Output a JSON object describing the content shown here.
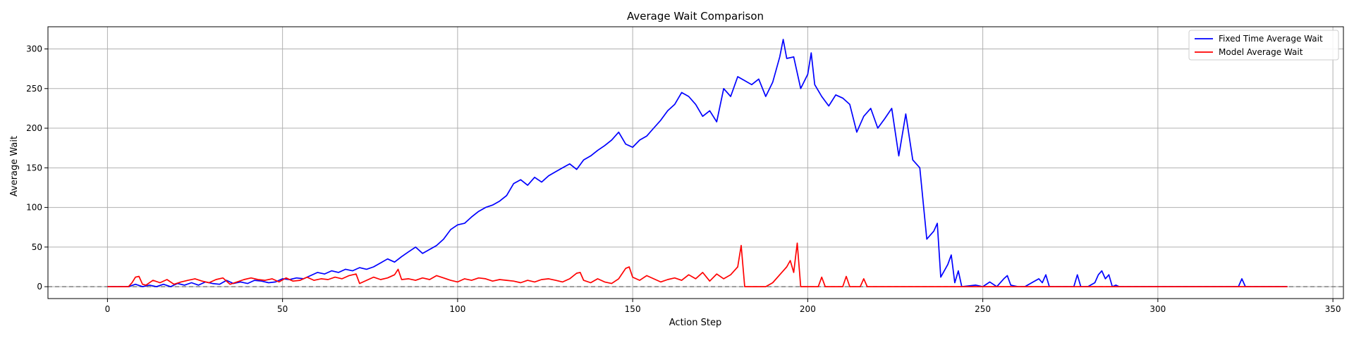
{
  "chart_data": {
    "type": "line",
    "title": "Average Wait Comparison",
    "xlabel": "Action Step",
    "ylabel": "Average Wait",
    "xlim": [
      -17,
      353
    ],
    "ylim": [
      -15,
      328
    ],
    "xticks": [
      0,
      50,
      100,
      150,
      200,
      250,
      300,
      350
    ],
    "yticks": [
      0,
      50,
      100,
      150,
      200,
      250,
      300
    ],
    "grid": true,
    "legend_position": "top-right",
    "reference_line": {
      "y": 0,
      "style": "dashed",
      "color": "#808080"
    },
    "series": [
      {
        "name": "Fixed Time Average Wait",
        "color": "#0000ff",
        "points": [
          [
            0,
            0
          ],
          [
            6,
            0
          ],
          [
            8,
            3
          ],
          [
            10,
            0
          ],
          [
            12,
            2
          ],
          [
            14,
            0
          ],
          [
            16,
            3
          ],
          [
            18,
            0
          ],
          [
            20,
            4
          ],
          [
            22,
            2
          ],
          [
            24,
            5
          ],
          [
            26,
            2
          ],
          [
            28,
            6
          ],
          [
            30,
            4
          ],
          [
            32,
            3
          ],
          [
            34,
            8
          ],
          [
            36,
            4
          ],
          [
            38,
            6
          ],
          [
            40,
            4
          ],
          [
            42,
            8
          ],
          [
            44,
            7
          ],
          [
            46,
            5
          ],
          [
            48,
            6
          ],
          [
            50,
            10
          ],
          [
            52,
            9
          ],
          [
            54,
            11
          ],
          [
            56,
            10
          ],
          [
            58,
            14
          ],
          [
            60,
            18
          ],
          [
            62,
            16
          ],
          [
            64,
            20
          ],
          [
            66,
            18
          ],
          [
            68,
            22
          ],
          [
            70,
            20
          ],
          [
            72,
            24
          ],
          [
            74,
            22
          ],
          [
            76,
            25
          ],
          [
            78,
            30
          ],
          [
            80,
            35
          ],
          [
            82,
            31
          ],
          [
            84,
            38
          ],
          [
            86,
            44
          ],
          [
            88,
            50
          ],
          [
            90,
            42
          ],
          [
            92,
            47
          ],
          [
            94,
            52
          ],
          [
            96,
            60
          ],
          [
            98,
            72
          ],
          [
            100,
            78
          ],
          [
            102,
            80
          ],
          [
            104,
            88
          ],
          [
            106,
            95
          ],
          [
            108,
            100
          ],
          [
            110,
            103
          ],
          [
            112,
            108
          ],
          [
            114,
            115
          ],
          [
            116,
            130
          ],
          [
            118,
            135
          ],
          [
            120,
            128
          ],
          [
            122,
            138
          ],
          [
            124,
            132
          ],
          [
            126,
            140
          ],
          [
            128,
            145
          ],
          [
            130,
            150
          ],
          [
            132,
            155
          ],
          [
            134,
            148
          ],
          [
            136,
            160
          ],
          [
            138,
            165
          ],
          [
            140,
            172
          ],
          [
            142,
            178
          ],
          [
            144,
            185
          ],
          [
            146,
            195
          ],
          [
            148,
            180
          ],
          [
            150,
            176
          ],
          [
            152,
            185
          ],
          [
            154,
            190
          ],
          [
            156,
            200
          ],
          [
            158,
            210
          ],
          [
            160,
            222
          ],
          [
            162,
            230
          ],
          [
            164,
            245
          ],
          [
            166,
            240
          ],
          [
            168,
            230
          ],
          [
            170,
            215
          ],
          [
            172,
            222
          ],
          [
            174,
            208
          ],
          [
            176,
            250
          ],
          [
            178,
            240
          ],
          [
            180,
            265
          ],
          [
            182,
            260
          ],
          [
            184,
            255
          ],
          [
            186,
            262
          ],
          [
            188,
            240
          ],
          [
            190,
            258
          ],
          [
            192,
            290
          ],
          [
            193,
            312
          ],
          [
            194,
            288
          ],
          [
            196,
            290
          ],
          [
            198,
            250
          ],
          [
            200,
            268
          ],
          [
            201,
            295
          ],
          [
            202,
            255
          ],
          [
            204,
            240
          ],
          [
            206,
            228
          ],
          [
            208,
            242
          ],
          [
            210,
            238
          ],
          [
            212,
            230
          ],
          [
            214,
            195
          ],
          [
            216,
            215
          ],
          [
            218,
            225
          ],
          [
            220,
            200
          ],
          [
            222,
            212
          ],
          [
            224,
            225
          ],
          [
            226,
            165
          ],
          [
            228,
            218
          ],
          [
            230,
            160
          ],
          [
            232,
            150
          ],
          [
            234,
            60
          ],
          [
            236,
            70
          ],
          [
            237,
            80
          ],
          [
            238,
            12
          ],
          [
            240,
            28
          ],
          [
            241,
            40
          ],
          [
            242,
            5
          ],
          [
            243,
            20
          ],
          [
            244,
            0
          ],
          [
            248,
            2
          ],
          [
            250,
            0
          ],
          [
            252,
            6
          ],
          [
            254,
            0
          ],
          [
            256,
            10
          ],
          [
            257,
            14
          ],
          [
            258,
            2
          ],
          [
            260,
            0
          ],
          [
            262,
            0
          ],
          [
            264,
            5
          ],
          [
            266,
            10
          ],
          [
            267,
            5
          ],
          [
            268,
            15
          ],
          [
            269,
            0
          ],
          [
            270,
            0
          ],
          [
            276,
            0
          ],
          [
            277,
            15
          ],
          [
            278,
            0
          ],
          [
            280,
            0
          ],
          [
            282,
            5
          ],
          [
            283,
            15
          ],
          [
            284,
            20
          ],
          [
            285,
            10
          ],
          [
            286,
            15
          ],
          [
            287,
            0
          ],
          [
            288,
            2
          ],
          [
            289,
            0
          ],
          [
            323,
            0
          ],
          [
            324,
            10
          ],
          [
            325,
            0
          ],
          [
            337,
            0
          ]
        ]
      },
      {
        "name": "Model Average Wait",
        "color": "#ff0000",
        "points": [
          [
            0,
            0
          ],
          [
            6,
            0
          ],
          [
            7,
            5
          ],
          [
            8,
            12
          ],
          [
            9,
            13
          ],
          [
            10,
            3
          ],
          [
            11,
            2
          ],
          [
            13,
            8
          ],
          [
            15,
            5
          ],
          [
            17,
            9
          ],
          [
            19,
            3
          ],
          [
            21,
            6
          ],
          [
            23,
            8
          ],
          [
            25,
            10
          ],
          [
            27,
            7
          ],
          [
            29,
            5
          ],
          [
            31,
            9
          ],
          [
            33,
            11
          ],
          [
            35,
            3
          ],
          [
            37,
            6
          ],
          [
            39,
            9
          ],
          [
            41,
            11
          ],
          [
            43,
            9
          ],
          [
            45,
            8
          ],
          [
            47,
            10
          ],
          [
            49,
            6
          ],
          [
            51,
            11
          ],
          [
            53,
            7
          ],
          [
            55,
            8
          ],
          [
            57,
            12
          ],
          [
            59,
            8
          ],
          [
            61,
            10
          ],
          [
            63,
            9
          ],
          [
            65,
            12
          ],
          [
            67,
            10
          ],
          [
            69,
            14
          ],
          [
            71,
            16
          ],
          [
            72,
            4
          ],
          [
            74,
            8
          ],
          [
            76,
            12
          ],
          [
            78,
            9
          ],
          [
            80,
            11
          ],
          [
            82,
            15
          ],
          [
            83,
            22
          ],
          [
            84,
            9
          ],
          [
            86,
            10
          ],
          [
            88,
            8
          ],
          [
            90,
            11
          ],
          [
            92,
            9
          ],
          [
            94,
            14
          ],
          [
            96,
            11
          ],
          [
            98,
            8
          ],
          [
            100,
            6
          ],
          [
            102,
            10
          ],
          [
            104,
            8
          ],
          [
            106,
            11
          ],
          [
            108,
            10
          ],
          [
            110,
            7
          ],
          [
            112,
            9
          ],
          [
            114,
            8
          ],
          [
            116,
            7
          ],
          [
            118,
            5
          ],
          [
            120,
            8
          ],
          [
            122,
            6
          ],
          [
            124,
            9
          ],
          [
            126,
            10
          ],
          [
            128,
            8
          ],
          [
            130,
            6
          ],
          [
            132,
            10
          ],
          [
            134,
            17
          ],
          [
            135,
            18
          ],
          [
            136,
            8
          ],
          [
            138,
            5
          ],
          [
            140,
            10
          ],
          [
            142,
            6
          ],
          [
            144,
            4
          ],
          [
            146,
            10
          ],
          [
            148,
            23
          ],
          [
            149,
            25
          ],
          [
            150,
            12
          ],
          [
            152,
            8
          ],
          [
            154,
            14
          ],
          [
            156,
            10
          ],
          [
            158,
            6
          ],
          [
            160,
            9
          ],
          [
            162,
            11
          ],
          [
            164,
            8
          ],
          [
            166,
            15
          ],
          [
            168,
            10
          ],
          [
            170,
            18
          ],
          [
            172,
            7
          ],
          [
            174,
            16
          ],
          [
            176,
            10
          ],
          [
            178,
            15
          ],
          [
            180,
            25
          ],
          [
            181,
            52
          ],
          [
            182,
            0
          ],
          [
            184,
            0
          ],
          [
            188,
            0
          ],
          [
            190,
            5
          ],
          [
            192,
            15
          ],
          [
            194,
            25
          ],
          [
            195,
            33
          ],
          [
            196,
            18
          ],
          [
            197,
            55
          ],
          [
            198,
            0
          ],
          [
            200,
            0
          ],
          [
            203,
            0
          ],
          [
            204,
            12
          ],
          [
            205,
            0
          ],
          [
            207,
            0
          ],
          [
            208,
            0
          ],
          [
            210,
            0
          ],
          [
            211,
            13
          ],
          [
            212,
            0
          ],
          [
            215,
            0
          ],
          [
            216,
            10
          ],
          [
            217,
            0
          ],
          [
            220,
            0
          ],
          [
            222,
            0
          ],
          [
            224,
            0
          ],
          [
            230,
            0
          ],
          [
            337,
            0
          ]
        ]
      }
    ]
  }
}
